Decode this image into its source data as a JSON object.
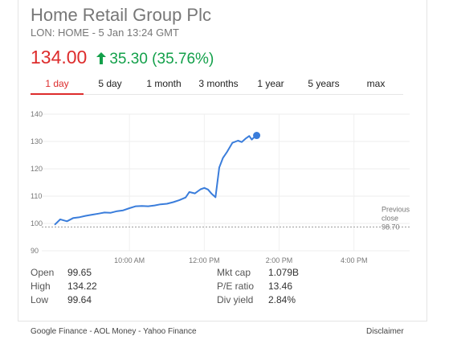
{
  "company": "Home Retail Group Plc",
  "ticker_line": "LON: HOME - 5 Jan 13:24 GMT",
  "price": "134.00",
  "change": "35.30 (35.76%)",
  "change_icon": "up-arrow-icon",
  "colors": {
    "price": "#dd2c2c",
    "change": "#13a04a",
    "line": "#3a7ddb",
    "active_tab": "#dd2c2c"
  },
  "tabs": [
    {
      "label": "1 day",
      "active": true
    },
    {
      "label": "5 day"
    },
    {
      "label": "1 month"
    },
    {
      "label": "3 months"
    },
    {
      "label": "1 year"
    },
    {
      "label": "5 years"
    },
    {
      "label": "max"
    }
  ],
  "chart_data": {
    "type": "line",
    "y_ticks": [
      "140",
      "130",
      "120",
      "110",
      "100",
      "90"
    ],
    "x_ticks": [
      "10:00 AM",
      "12:00 PM",
      "2:00 PM",
      "4:00 PM"
    ],
    "previous_close_label": [
      "Previous",
      "close"
    ],
    "previous_close_value": "98.70",
    "ylim": [
      90,
      140
    ],
    "xlim": [
      8,
      16.5
    ],
    "grid": true,
    "series": [
      {
        "x": [
          8.0,
          8.15,
          8.33,
          8.5,
          8.67,
          8.83,
          9.0,
          9.17,
          9.33,
          9.5,
          9.67,
          9.83,
          10.0,
          10.17,
          10.33,
          10.5,
          10.67,
          10.83,
          11.0,
          11.17,
          11.33,
          11.5,
          11.6,
          11.75,
          11.9,
          12.0,
          12.1,
          12.2,
          12.3,
          12.4,
          12.5,
          12.6,
          12.75,
          12.9,
          13.0,
          13.1,
          13.2,
          13.27,
          13.33,
          13.4
        ],
        "y": [
          99.5,
          101.5,
          100.8,
          102.0,
          102.3,
          102.8,
          103.2,
          103.6,
          104.0,
          103.9,
          104.5,
          104.8,
          105.6,
          106.3,
          106.4,
          106.3,
          106.6,
          107.0,
          107.2,
          107.8,
          108.5,
          109.5,
          111.5,
          111.0,
          112.5,
          113.0,
          112.4,
          110.8,
          109.6,
          120.5,
          124.0,
          126.0,
          129.5,
          130.3,
          129.8,
          131.0,
          132.0,
          130.7,
          131.5,
          132.2
        ]
      }
    ]
  },
  "stats": {
    "left": [
      {
        "label": "Open",
        "value": "99.65"
      },
      {
        "label": "High",
        "value": "134.22"
      },
      {
        "label": "Low",
        "value": "99.64"
      }
    ],
    "right": [
      {
        "label": "Mkt cap",
        "value": "1.079B"
      },
      {
        "label": "P/E ratio",
        "value": "13.46"
      },
      {
        "label": "Div yield",
        "value": "2.84%"
      }
    ]
  },
  "footer": {
    "links": "Google Finance - AOL Money - Yahoo Finance",
    "disclaimer": "Disclaimer"
  }
}
